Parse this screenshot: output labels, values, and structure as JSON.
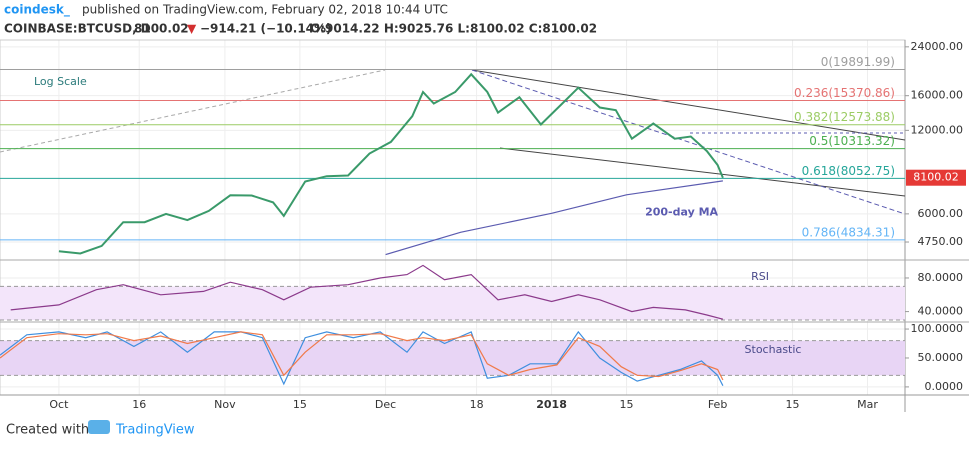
{
  "header": {
    "publisher": "coindesk_",
    "published": "published on TradingView.com, February 02, 2018 10:44 UTC",
    "symbol": "COINBASE:BTCUSD, D",
    "price": "8100.02",
    "arrow": "▼",
    "change": "−914.21 (−10.14%)",
    "ohlc": "O:9014.22 H:9025.76 L:8100.02 C:8100.02"
  },
  "footer": {
    "created": "Created with",
    "brand": "TradingView"
  },
  "chart_data": [
    {
      "type": "line",
      "log_scale": true,
      "annotation": "Log Scale",
      "last_price": 8100.02,
      "xlim": [
        "2017-09-20",
        "2018-03-08"
      ],
      "xticks": [
        {
          "value": "2017-10-01",
          "label": "Oct"
        },
        {
          "value": "2017-10-16",
          "label": "16"
        },
        {
          "value": "2017-11-01",
          "label": "Nov"
        },
        {
          "value": "2017-11-15",
          "label": "15"
        },
        {
          "value": "2017-12-01",
          "label": "Dec"
        },
        {
          "value": "2017-12-18",
          "label": "18"
        },
        {
          "value": "2018-01-01",
          "label": "2018"
        },
        {
          "value": "2018-01-15",
          "label": "15"
        },
        {
          "value": "2018-02-01",
          "label": "Feb"
        },
        {
          "value": "2018-02-15",
          "label": "15"
        },
        {
          "value": "2018-03-01",
          "label": "Mar"
        }
      ],
      "ylim": [
        4160,
        25400
      ],
      "yticks": [
        {
          "value": 24000,
          "label": "24000.00"
        },
        {
          "value": 16000,
          "label": "16000.00"
        },
        {
          "value": 12000,
          "label": "12000.00"
        },
        {
          "value": 6000,
          "label": "6000.00"
        },
        {
          "value": 4750,
          "label": "4750.00"
        }
      ],
      "fib": [
        {
          "label": "0(19891.99)",
          "value": 19891.99,
          "color": "#9e9e9e"
        },
        {
          "label": "0.236(15370.86)",
          "value": 15370.86,
          "color": "#e57373"
        },
        {
          "label": "0.382(12573.88)",
          "value": 12573.88,
          "color": "#9ccc65"
        },
        {
          "label": "0.5(10313.32)",
          "value": 10313.32,
          "color": "#4caf50"
        },
        {
          "label": "0.618(8052.75)",
          "value": 8052.75,
          "color": "#26a69a"
        },
        {
          "label": "0.786(4834.31)",
          "value": 4834.31,
          "color": "#64b5f6"
        }
      ],
      "series": [
        {
          "color": "#3a9a6a",
          "x": [
            "2017-10-01",
            "2017-10-05",
            "2017-10-09",
            "2017-10-13",
            "2017-10-17",
            "2017-10-21",
            "2017-10-25",
            "2017-10-29",
            "2017-11-02",
            "2017-11-06",
            "2017-11-10",
            "2017-11-12",
            "2017-11-16",
            "2017-11-20",
            "2017-11-24",
            "2017-11-28",
            "2017-12-02",
            "2017-12-06",
            "2017-12-08",
            "2017-12-10",
            "2017-12-14",
            "2017-12-17",
            "2017-12-20",
            "2017-12-22",
            "2017-12-26",
            "2017-12-30",
            "2018-01-03",
            "2018-01-06",
            "2018-01-10",
            "2018-01-13",
            "2018-01-16",
            "2018-01-20",
            "2018-01-24",
            "2018-01-27",
            "2018-01-30",
            "2018-02-01",
            "2018-02-02"
          ],
          "values": [
            4400,
            4320,
            4600,
            5600,
            5600,
            6000,
            5700,
            6150,
            7000,
            6990,
            6600,
            5900,
            7850,
            8200,
            8250,
            9900,
            10900,
            13500,
            16500,
            15000,
            16500,
            19100,
            16500,
            13900,
            15800,
            12600,
            15000,
            17100,
            14500,
            14200,
            11200,
            12700,
            11200,
            11400,
            10100,
            9000,
            8100.02
          ]
        },
        {
          "name": "200-day MA",
          "color": "#5b5bb0",
          "x": [
            "2017-12-01",
            "2017-12-15",
            "2018-01-01",
            "2018-01-15",
            "2018-02-02"
          ],
          "values": [
            4280,
            5150,
            6030,
            7030,
            7890
          ]
        }
      ]
    },
    {
      "type": "line",
      "title": "RSI",
      "xlim": [
        "2017-09-20",
        "2018-03-08"
      ],
      "ylim": [
        30,
        99
      ],
      "yticks": [
        {
          "value": 80,
          "label": "80.0000"
        },
        {
          "value": 40,
          "label": "40.0000"
        }
      ],
      "bands": [
        30,
        70
      ],
      "band_color": "#f3e5fa",
      "series": [
        {
          "color": "#8b3a8b",
          "x": [
            "2017-09-22",
            "2017-10-01",
            "2017-10-08",
            "2017-10-13",
            "2017-10-20",
            "2017-10-28",
            "2017-11-02",
            "2017-11-08",
            "2017-11-12",
            "2017-11-17",
            "2017-11-24",
            "2017-11-30",
            "2017-12-05",
            "2017-12-08",
            "2017-12-12",
            "2017-12-17",
            "2017-12-22",
            "2017-12-27",
            "2018-01-01",
            "2018-01-06",
            "2018-01-10",
            "2018-01-16",
            "2018-01-20",
            "2018-01-26",
            "2018-01-30",
            "2018-02-02"
          ],
          "values": [
            42,
            48,
            66,
            72,
            60,
            64,
            75,
            66,
            54,
            69,
            72,
            80,
            84,
            95,
            78,
            84,
            54,
            60,
            52,
            60,
            54,
            40,
            45,
            42,
            36,
            31
          ]
        }
      ]
    },
    {
      "type": "line",
      "title": "Stochastic",
      "xlim": [
        "2017-09-20",
        "2018-03-08"
      ],
      "ylim": [
        -14,
        107
      ],
      "yticks": [
        {
          "value": 100,
          "label": "100.0000"
        },
        {
          "value": 50,
          "label": "50.0000"
        },
        {
          "value": 0,
          "label": "0.0000"
        }
      ],
      "bands": [
        20,
        80
      ],
      "band_color": "#e8d5f5",
      "series": [
        {
          "color": "#3f8fdf",
          "x": [
            "2017-09-20",
            "2017-09-25",
            "2017-10-01",
            "2017-10-06",
            "2017-10-10",
            "2017-10-15",
            "2017-10-20",
            "2017-10-25",
            "2017-10-30",
            "2017-11-04",
            "2017-11-08",
            "2017-11-12",
            "2017-11-16",
            "2017-11-20",
            "2017-11-25",
            "2017-11-30",
            "2017-12-05",
            "2017-12-08",
            "2017-12-12",
            "2017-12-17",
            "2017-12-20",
            "2017-12-24",
            "2017-12-28",
            "2018-01-02",
            "2018-01-06",
            "2018-01-10",
            "2018-01-14",
            "2018-01-17",
            "2018-01-21",
            "2018-01-25",
            "2018-01-29",
            "2018-02-01",
            "2018-02-02"
          ],
          "values": [
            55,
            90,
            95,
            85,
            95,
            70,
            95,
            60,
            95,
            95,
            85,
            5,
            85,
            95,
            85,
            95,
            60,
            95,
            75,
            95,
            15,
            20,
            40,
            40,
            95,
            50,
            25,
            10,
            20,
            30,
            45,
            20,
            2
          ]
        },
        {
          "color": "#f07a4a",
          "x": [
            "2017-09-20",
            "2017-09-25",
            "2017-10-01",
            "2017-10-06",
            "2017-10-10",
            "2017-10-15",
            "2017-10-20",
            "2017-10-25",
            "2017-10-30",
            "2017-11-04",
            "2017-11-08",
            "2017-11-12",
            "2017-11-16",
            "2017-11-20",
            "2017-11-25",
            "2017-11-30",
            "2017-12-05",
            "2017-12-08",
            "2017-12-12",
            "2017-12-17",
            "2017-12-20",
            "2017-12-24",
            "2017-12-28",
            "2018-01-02",
            "2018-01-06",
            "2018-01-10",
            "2018-01-14",
            "2018-01-17",
            "2018-01-21",
            "2018-01-25",
            "2018-01-29",
            "2018-02-01",
            "2018-02-02"
          ],
          "values": [
            50,
            85,
            92,
            90,
            92,
            80,
            88,
            75,
            85,
            95,
            90,
            20,
            60,
            90,
            90,
            92,
            80,
            85,
            80,
            90,
            40,
            20,
            30,
            38,
            85,
            70,
            35,
            20,
            18,
            28,
            40,
            30,
            12
          ]
        }
      ]
    }
  ]
}
